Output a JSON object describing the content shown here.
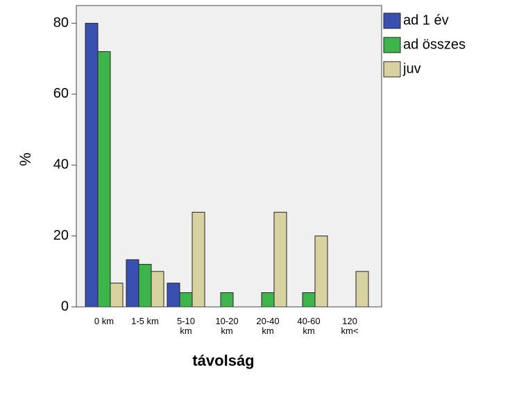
{
  "chart_data": {
    "type": "bar",
    "x_label": "távolság",
    "y_label": "%",
    "categories": [
      "0 km",
      "1-5 km",
      "5-10 km",
      "10-20 km",
      "20-40 km",
      "40-60 km",
      "120 km<"
    ],
    "series": [
      {
        "name": "ad 1 év",
        "color": "#3a50b0",
        "values": [
          80,
          13.3,
          6.7,
          0,
          0,
          0,
          0
        ]
      },
      {
        "name": "ad összes",
        "color": "#3db54b",
        "values": [
          72,
          12,
          4,
          4,
          4,
          4,
          0
        ]
      },
      {
        "name": "juv",
        "color": "#d8d2a0",
        "values": [
          6.7,
          10,
          26.7,
          0,
          26.7,
          20,
          10
        ]
      }
    ],
    "ylim": [
      0,
      85
    ],
    "yticks": [
      0,
      20,
      40,
      60,
      80
    ],
    "legend": "right"
  }
}
